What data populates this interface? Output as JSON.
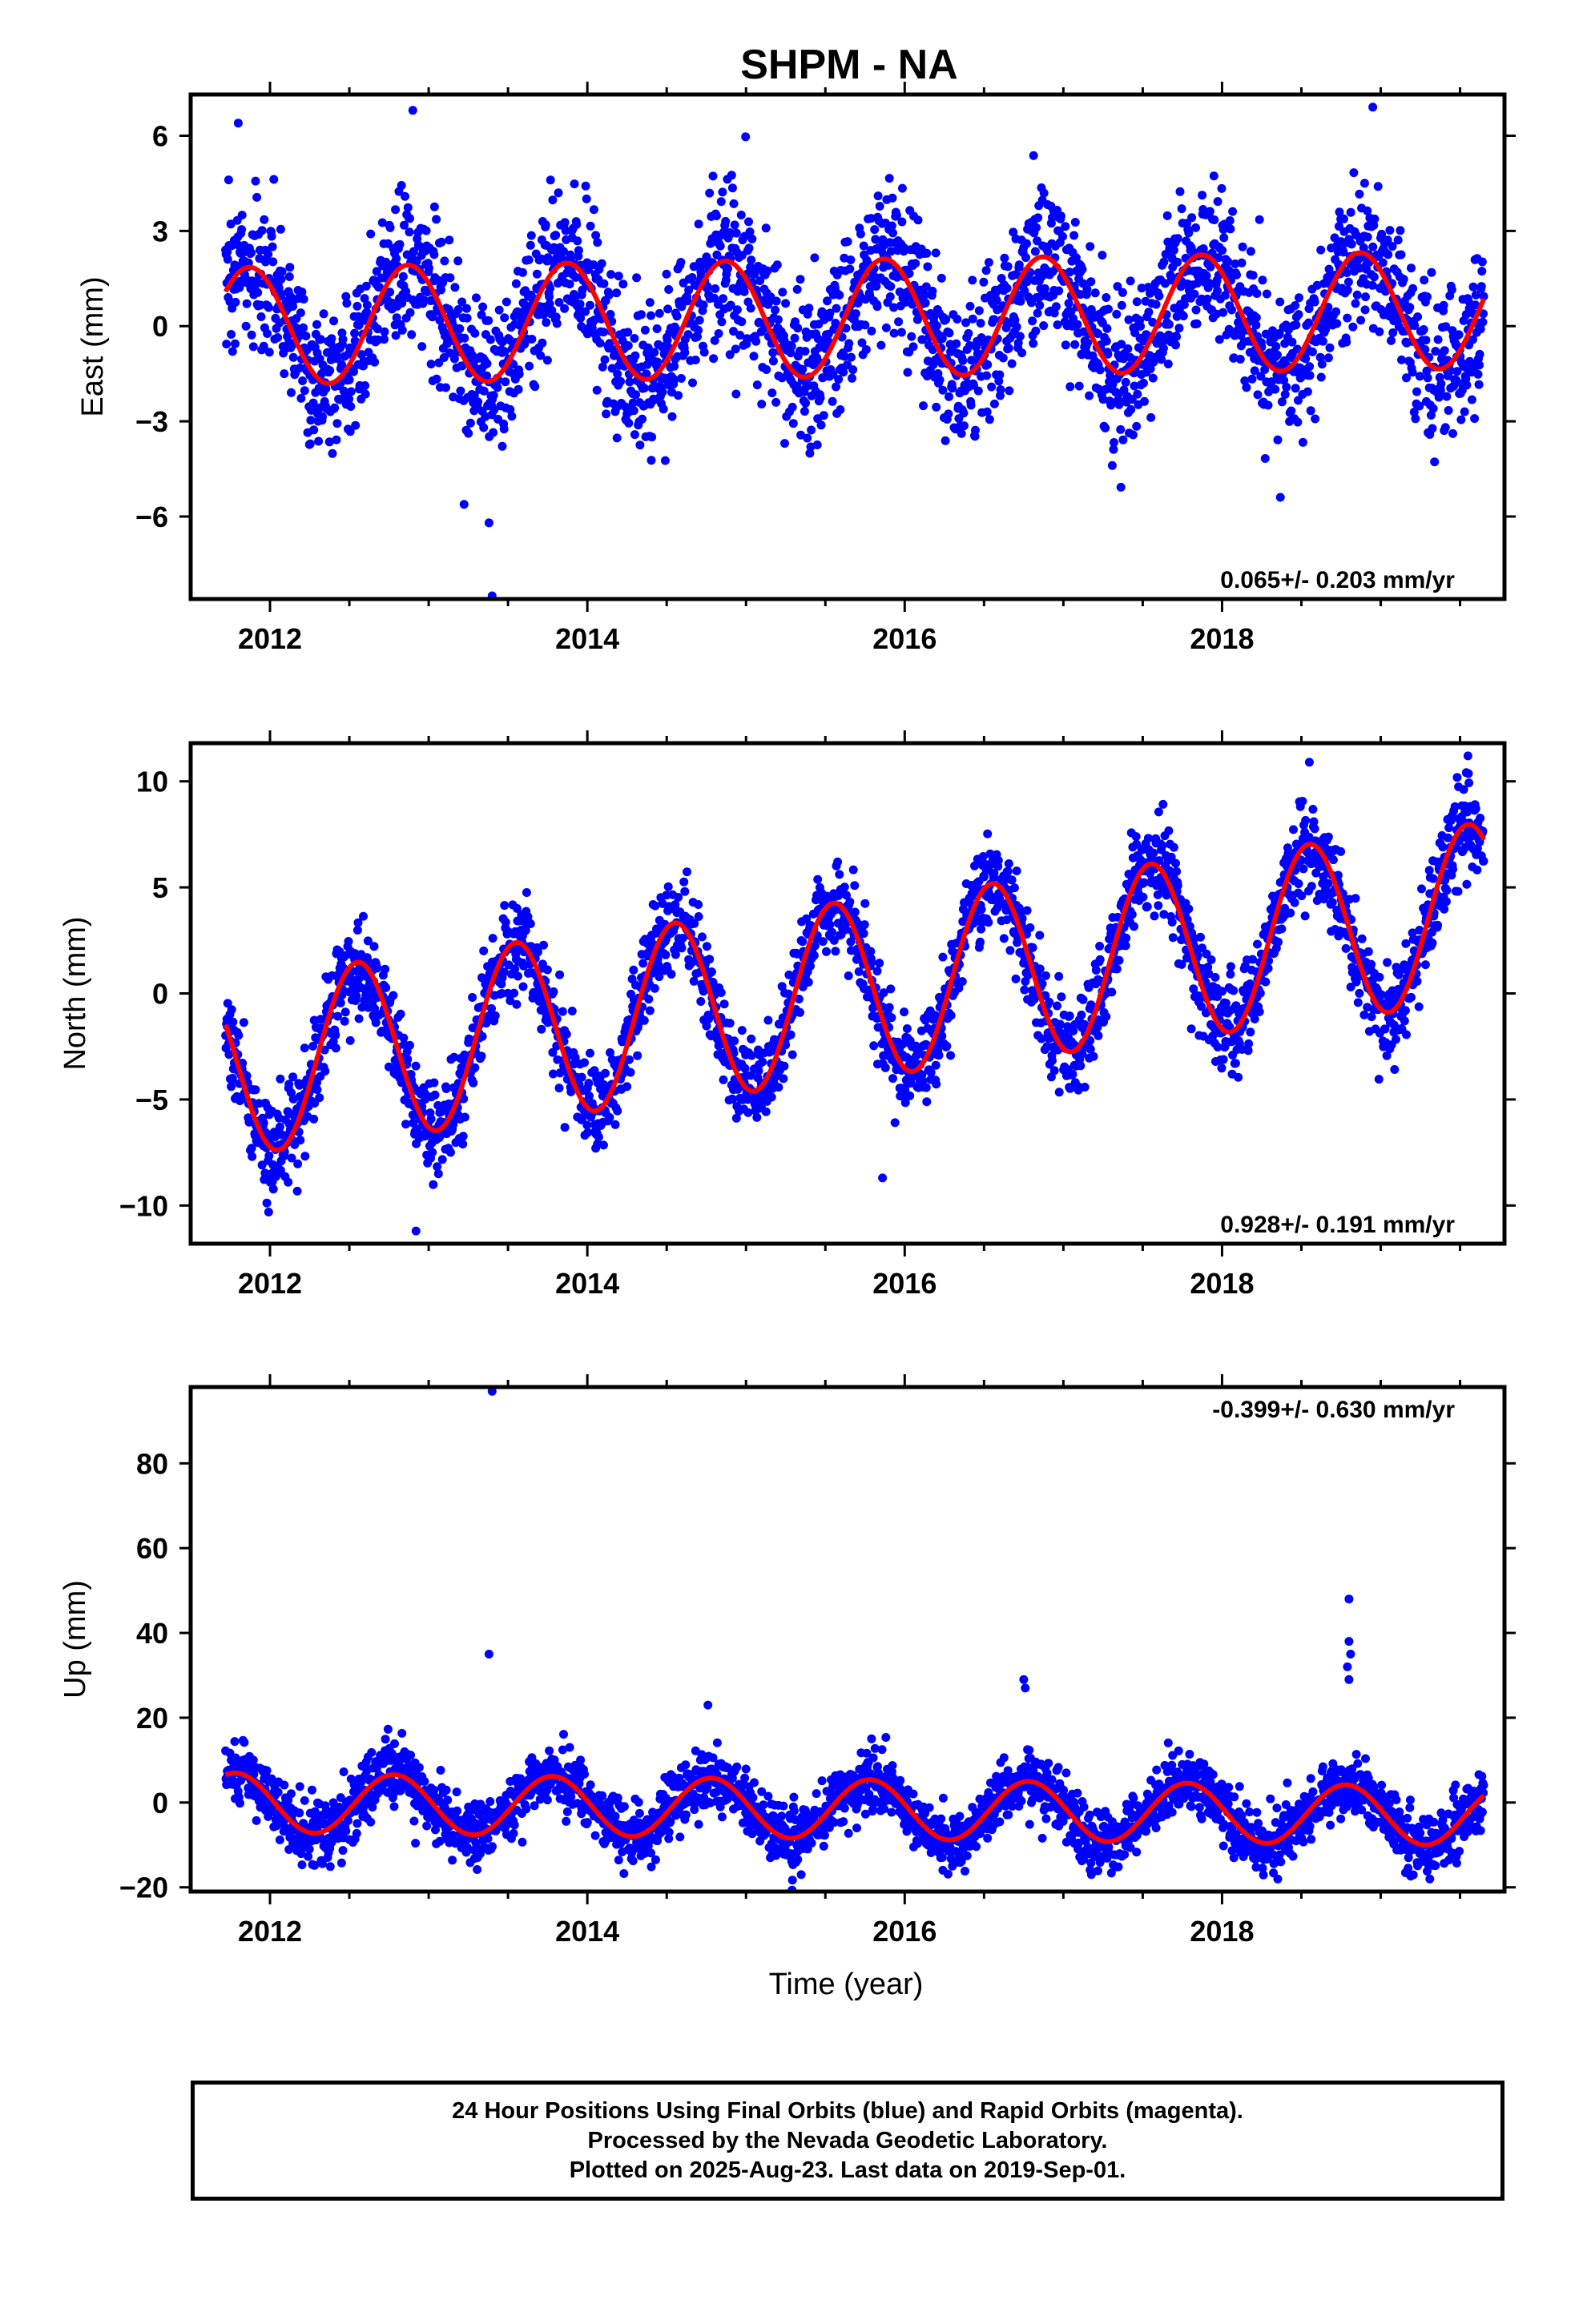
{
  "title": "SHPM - NA",
  "colors": {
    "points": "#0000ff",
    "fit": "#ff0000",
    "frame": "#000000"
  },
  "caption": {
    "lines": [
      "24 Hour Positions Using Final Orbits (blue) and Rapid Orbits (magenta).",
      "Processed by the Nevada Geodetic Laboratory.",
      "Plotted on 2025-Aug-23. Last data on 2019-Sep-01."
    ]
  },
  "chart_data": [
    {
      "type": "scatter",
      "ylabel": "East (mm)",
      "xlabel": "",
      "x_start": 2011.72,
      "x_end": 2019.65,
      "xlim": [
        2011.5,
        2019.78
      ],
      "ylim": [
        -8.6,
        7.3
      ],
      "xticks": [
        "2012",
        "2014",
        "2016",
        "2018"
      ],
      "yticks": [
        "6",
        "3",
        "0",
        "−3",
        "−6"
      ],
      "rate_text": "0.065+/- 0.203 mm/yr",
      "rate_position": "bottom-right",
      "fit": {
        "trend_mm_per_yr": 0.065,
        "annual_amplitude_mm": 1.85,
        "annual_peak_phase_yr": 0.87
      },
      "scatter_sd_mm": 1.2,
      "outliers": [
        {
          "x": 2013.4,
          "y": -8.5
        },
        {
          "x": 2013.38,
          "y": -6.2
        },
        {
          "x": 2018.95,
          "y": 6.9
        },
        {
          "x": 2012.9,
          "y": 6.8
        },
        {
          "x": 2011.8,
          "y": 6.4
        }
      ]
    },
    {
      "type": "scatter",
      "ylabel": "North (mm)",
      "xlabel": "",
      "x_start": 2011.72,
      "x_end": 2019.65,
      "xlim": [
        2011.5,
        2019.78
      ],
      "ylim": [
        -11.8,
        11.8
      ],
      "xticks": [
        "2012",
        "2014",
        "2016",
        "2018"
      ],
      "yticks": [
        "10",
        "5",
        "0",
        "−5",
        "−10"
      ],
      "rate_text": "0.928+/- 0.191 mm/yr",
      "rate_position": "bottom-right",
      "fit": {
        "trend_mm_per_yr": 0.928,
        "annual_amplitude_mm": 4.2,
        "annual_peak_phase_yr": 0.55,
        "offset_at_2011_72_mm": -3.5
      },
      "scatter_sd_mm": 1.1,
      "outliers": [
        {
          "x": 2012.92,
          "y": -11.2
        },
        {
          "x": 2015.86,
          "y": -8.7
        },
        {
          "x": 2019.55,
          "y": 11.2
        },
        {
          "x": 2018.55,
          "y": 10.9
        }
      ]
    },
    {
      "type": "scatter",
      "ylabel": "Up (mm)",
      "xlabel": "Time (year)",
      "x_start": 2011.72,
      "x_end": 2019.65,
      "xlim": [
        2011.5,
        2019.78
      ],
      "ylim": [
        -21,
        98
      ],
      "xticks": [
        "2012",
        "2014",
        "2016",
        "2018"
      ],
      "yticks": [
        "80",
        "60",
        "40",
        "20",
        "0",
        "−20"
      ],
      "rate_text": "-0.399+/- 0.630 mm/yr",
      "rate_position": "top-right",
      "fit": {
        "trend_mm_per_yr": -0.399,
        "annual_amplitude_mm": 7.0,
        "annual_peak_phase_yr": 0.78
      },
      "scatter_sd_mm": 3.5,
      "outliers": [
        {
          "x": 2013.4,
          "y": 97
        },
        {
          "x": 2013.38,
          "y": 35
        },
        {
          "x": 2018.8,
          "y": 48
        },
        {
          "x": 2018.8,
          "y": 38
        },
        {
          "x": 2018.81,
          "y": 35
        },
        {
          "x": 2018.79,
          "y": 32
        },
        {
          "x": 2018.8,
          "y": 29
        },
        {
          "x": 2016.75,
          "y": 29
        },
        {
          "x": 2016.76,
          "y": 27
        },
        {
          "x": 2014.76,
          "y": 23
        }
      ]
    }
  ]
}
